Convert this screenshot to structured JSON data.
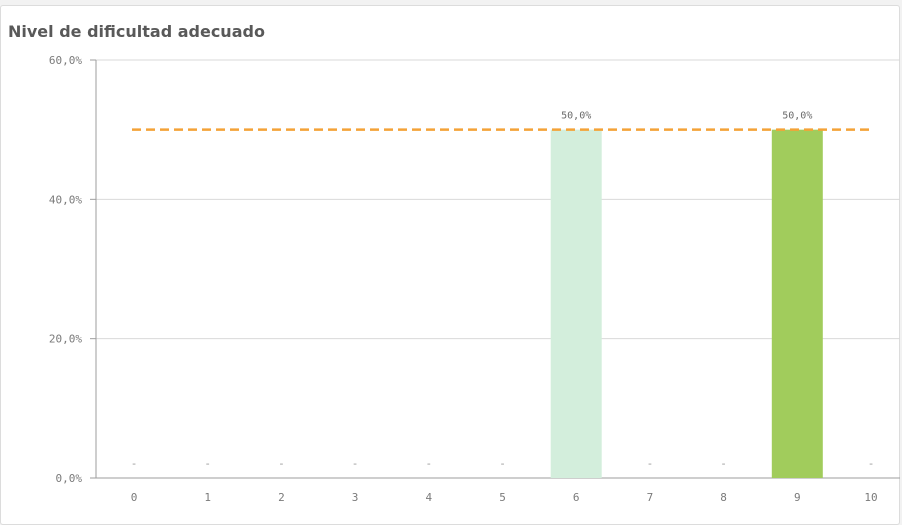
{
  "title": "Nivel de dificultad adecuado",
  "chart_data": {
    "type": "bar",
    "categories": [
      "0",
      "1",
      "2",
      "3",
      "4",
      "5",
      "6",
      "7",
      "8",
      "9",
      "10"
    ],
    "values": [
      0,
      0,
      0,
      0,
      0,
      0,
      50,
      0,
      0,
      50,
      0
    ],
    "value_labels": [
      "-",
      "-",
      "-",
      "-",
      "-",
      "-",
      "50,0%",
      "-",
      "-",
      "50,0%",
      "-"
    ],
    "bar_colors": [
      "#d3eedc",
      "#d3eedc",
      "#d3eedc",
      "#d3eedc",
      "#d3eedc",
      "#d3eedc",
      "#d3eedc",
      "#d3eedc",
      "#d3eedc",
      "#a1cc5c",
      "#d3eedc"
    ],
    "y_ticks": [
      {
        "value": 0,
        "label": "0,0%"
      },
      {
        "value": 20,
        "label": "20,0%"
      },
      {
        "value": 40,
        "label": "40,0%"
      },
      {
        "value": 60,
        "label": "60,0%"
      }
    ],
    "ylim": [
      0,
      60
    ],
    "reference_line": {
      "value": 50,
      "color": "#f4a237",
      "style": "dashed"
    },
    "grid": true,
    "gridline_color": "#d9d9d9",
    "xlabel": "",
    "ylabel": ""
  }
}
